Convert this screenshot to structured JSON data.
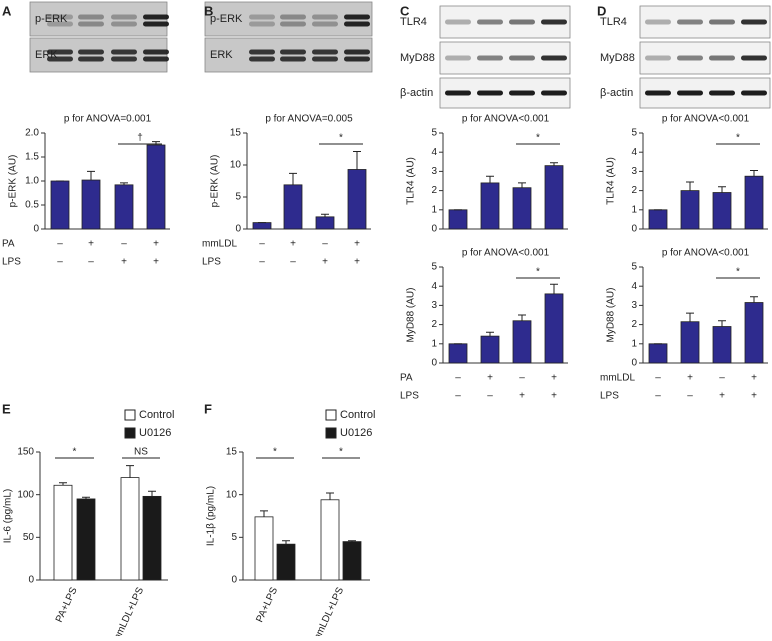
{
  "blots": [
    {
      "labels": [
        "p-ERK",
        "ERK"
      ]
    },
    {
      "labels": [
        "p-ERK",
        "ERK"
      ]
    },
    {
      "labels": [
        "TLR4",
        "MyD88",
        "β-actin"
      ]
    },
    {
      "labels": [
        "TLR4",
        "MyD88",
        "β-actin"
      ]
    }
  ],
  "chart_data": [
    {
      "type": "bar",
      "panel": "A",
      "title": "p for ANOVA=0.001",
      "ylabel": "p-ERK (AU)",
      "values": [
        1.0,
        1.02,
        0.92,
        1.75
      ],
      "errors": [
        0,
        0.18,
        0.04,
        0.07
      ],
      "color": "#2e2b8e",
      "ylim": [
        0,
        2
      ],
      "yticks": [
        0,
        0.5,
        {
          "value": 1,
          "label": "1.0"
        },
        1.5,
        {
          "value": 2,
          "label": "2.0"
        }
      ],
      "annotations": [
        "†"
      ],
      "treatments": [
        {
          "name": "PA",
          "signs": [
            "–",
            "+",
            "–",
            "+"
          ]
        },
        {
          "name": "LPS",
          "signs": [
            "–",
            "–",
            "+",
            "+"
          ]
        }
      ]
    },
    {
      "type": "bar",
      "panel": "B",
      "title": "p for ANOVA=0.005",
      "ylabel": "p-ERK (AU)",
      "values": [
        1.0,
        6.9,
        1.9,
        9.3
      ],
      "errors": [
        0,
        1.8,
        0.4,
        2.8
      ],
      "color": "#2e2b8e",
      "ylim": [
        0,
        15
      ],
      "yticks": [
        0,
        5,
        10,
        15
      ],
      "annotations": [
        "*"
      ],
      "treatments": [
        {
          "name": "mmLDL",
          "signs": [
            "–",
            "+",
            "–",
            "+"
          ]
        },
        {
          "name": "LPS",
          "signs": [
            "–",
            "–",
            "+",
            "+"
          ]
        }
      ]
    },
    {
      "type": "bar",
      "panel": "C",
      "title": "p for ANOVA<0.001",
      "ylabel": "TLR4 (AU)",
      "values": [
        1.0,
        2.4,
        2.15,
        3.3
      ],
      "errors": [
        0,
        0.35,
        0.25,
        0.15
      ],
      "color": "#2e2b8e",
      "ylim": [
        0,
        5
      ],
      "yticks": [
        0,
        1,
        2,
        3,
        4,
        5
      ],
      "annotations": [
        "*"
      ]
    },
    {
      "type": "bar",
      "title": "p for ANOVA<0.001",
      "ylabel": "MyD88 (AU)",
      "values": [
        1.0,
        1.4,
        2.2,
        3.6
      ],
      "errors": [
        0,
        0.2,
        0.3,
        0.5
      ],
      "color": "#2e2b8e",
      "ylim": [
        0,
        5
      ],
      "yticks": [
        0,
        1,
        2,
        3,
        4,
        5
      ],
      "annotations": [
        "*"
      ],
      "treatments": [
        {
          "name": "PA",
          "signs": [
            "–",
            "+",
            "–",
            "+"
          ]
        },
        {
          "name": "LPS",
          "signs": [
            "–",
            "–",
            "+",
            "+"
          ]
        }
      ]
    },
    {
      "type": "bar",
      "panel": "D",
      "title": "p for ANOVA<0.001",
      "ylabel": "TLR4 (AU)",
      "values": [
        1.0,
        2.0,
        1.9,
        2.75
      ],
      "errors": [
        0,
        0.45,
        0.3,
        0.3
      ],
      "color": "#2e2b8e",
      "ylim": [
        0,
        5
      ],
      "yticks": [
        0,
        1,
        2,
        3,
        4,
        5
      ],
      "annotations": [
        "*"
      ]
    },
    {
      "type": "bar",
      "title": "p for ANOVA<0.001",
      "ylabel": "MyD88 (AU)",
      "values": [
        1.0,
        2.15,
        1.9,
        3.15
      ],
      "errors": [
        0,
        0.45,
        0.3,
        0.3
      ],
      "color": "#2e2b8e",
      "ylim": [
        0,
        5
      ],
      "yticks": [
        0,
        1,
        2,
        3,
        4,
        5
      ],
      "annotations": [
        "*"
      ],
      "treatments": [
        {
          "name": "mmLDL",
          "signs": [
            "–",
            "+",
            "–",
            "+"
          ]
        },
        {
          "name": "LPS",
          "signs": [
            "–",
            "–",
            "+",
            "+"
          ]
        }
      ]
    },
    {
      "type": "grouped-bar",
      "panel": "E",
      "ylabel": "IL-6 (pg/mL)",
      "categories": [
        "PA+LPS",
        "mmLDL+LPS"
      ],
      "series": [
        {
          "name": "Control",
          "color": "#ffffff",
          "values": [
            111,
            120
          ],
          "errors": [
            3,
            14
          ]
        },
        {
          "name": "U0126",
          "color": "#1a1a1a",
          "values": [
            95,
            98
          ],
          "errors": [
            2,
            6
          ]
        }
      ],
      "ylim": [
        0,
        150
      ],
      "yticks": [
        0,
        50,
        100,
        150
      ],
      "annotations": [
        "*",
        "NS"
      ]
    },
    {
      "type": "grouped-bar",
      "panel": "F",
      "ylabel": "IL-1β (pg/mL)",
      "categories": [
        "PA+LPS",
        "mmLDL+LPS"
      ],
      "series": [
        {
          "name": "Control",
          "color": "#ffffff",
          "values": [
            7.4,
            9.4
          ],
          "errors": [
            0.7,
            0.8
          ]
        },
        {
          "name": "U0126",
          "color": "#1a1a1a",
          "values": [
            4.2,
            4.5
          ],
          "errors": [
            0.4,
            0.1
          ]
        }
      ],
      "ylim": [
        0,
        15
      ],
      "yticks": [
        0,
        5,
        10,
        15
      ],
      "annotations": [
        "*",
        "*"
      ]
    }
  ]
}
